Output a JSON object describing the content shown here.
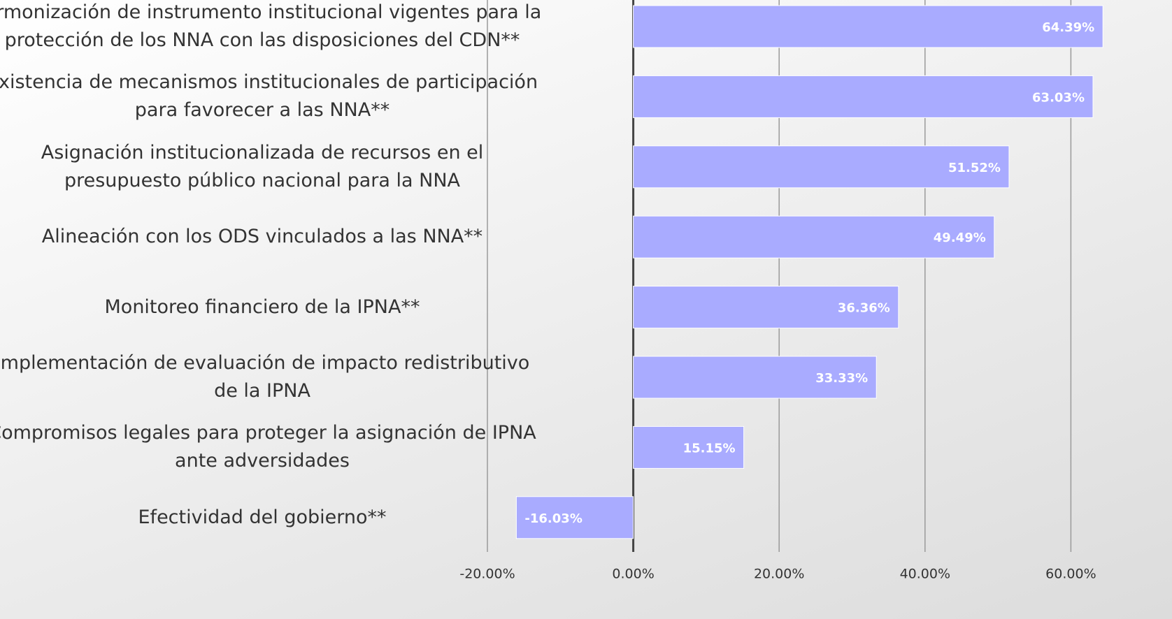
{
  "chart_data": {
    "type": "bar",
    "orientation": "horizontal",
    "categories": [
      "Armonización de instrumento institucional vigentes para la protección de los NNA con las disposiciones del CDN**",
      "Existencia de mecanismos institucionales de participación para favorecer a las NNA**",
      "Asignación institucionalizada de recursos en el presupuesto público nacional para la NNA",
      "Alineación con los ODS vinculados a las NNA**",
      "Monitoreo financiero de la IPNA**",
      "Implementación de evaluación de impacto redistributivo de la IPNA",
      "Compromisos legales para proteger la asignación de IPNA ante adversidades",
      "Efectividad del gobierno**"
    ],
    "values": [
      64.39,
      63.03,
      51.52,
      49.49,
      36.36,
      33.33,
      15.15,
      -16.03
    ],
    "value_labels": [
      "64.39%",
      "63.03%",
      "51.52%",
      "49.49%",
      "36.36%",
      "33.33%",
      "15.15%",
      "-16.03%"
    ],
    "color": "#a9abff",
    "xlim": [
      -20,
      70
    ],
    "xticks": [
      {
        "value": -20,
        "label": "-20.00%"
      },
      {
        "value": 0,
        "label": "0.00%"
      },
      {
        "value": 20,
        "label": "20.00%"
      },
      {
        "value": 40,
        "label": "40.00%"
      },
      {
        "value": 60,
        "label": "60.00%"
      }
    ],
    "grid": true
  }
}
